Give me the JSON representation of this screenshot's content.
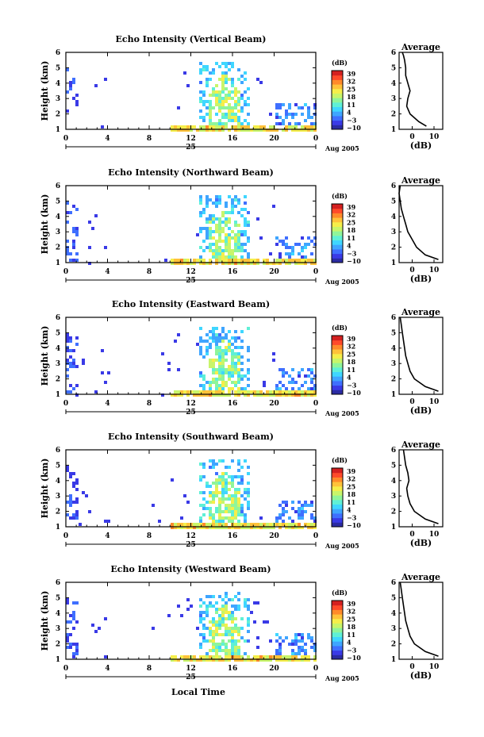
{
  "figure": {
    "x_axis_label": "Local Time",
    "date_label": "Aug 2005",
    "colorbar_unit": "(dB)",
    "colorbar_ticks": [
      "39",
      "32",
      "25",
      "18",
      "11",
      "4",
      "−3",
      "−10"
    ],
    "colormap": [
      "#2b2ba3",
      "#3a3ae6",
      "#3f6fff",
      "#3fa5ff",
      "#3fd6ff",
      "#5ff0d6",
      "#8ff59a",
      "#c8f56a",
      "#f5ee4a",
      "#ffc23a",
      "#ff8a2a",
      "#ff4a2a",
      "#d42020"
    ]
  },
  "chart_data": [
    {
      "type": "heatmap",
      "title": "Echo Intensity (Vertical Beam)",
      "ylabel": "Height (km)",
      "ylim": [
        1,
        6
      ],
      "yticks": [
        1,
        2,
        3,
        4,
        5,
        6
      ],
      "xticks": [
        "0",
        "4",
        "8",
        "12",
        "16",
        "20",
        "0"
      ],
      "xsublabel": "25",
      "clim": [
        -10,
        39
      ],
      "profile": {
        "title": "Average",
        "xlabel": "(dB)",
        "xticks": [
          "0",
          "10"
        ],
        "x": [
          6.5,
          3,
          -1,
          -2.5,
          -2,
          -1,
          -2,
          -3,
          -3,
          -3.5,
          -4,
          -4.5
        ],
        "y": [
          1.2,
          1.5,
          2,
          2.5,
          3,
          3.5,
          4,
          4.5,
          5,
          5.5,
          5.8,
          6
        ]
      }
    },
    {
      "type": "heatmap",
      "title": "Echo Intensity (Northward Beam)",
      "ylabel": "Height (km)",
      "ylim": [
        1,
        6
      ],
      "yticks": [
        1,
        2,
        3,
        4,
        5,
        6
      ],
      "xticks": [
        "0",
        "4",
        "8",
        "12",
        "16",
        "20",
        "0"
      ],
      "xsublabel": "25",
      "clim": [
        -10,
        39
      ],
      "profile": {
        "title": "Average",
        "xlabel": "(dB)",
        "xticks": [
          "0",
          "10"
        ],
        "x": [
          12,
          6,
          2,
          0,
          -2,
          -3,
          -4,
          -5,
          -5.5,
          -6,
          -5.5
        ],
        "y": [
          1.2,
          1.5,
          2,
          2.5,
          3,
          3.5,
          4,
          4.5,
          5,
          5.5,
          6
        ]
      }
    },
    {
      "type": "heatmap",
      "title": "Echo Intensity (Eastward Beam)",
      "ylabel": "Height (km)",
      "ylim": [
        1,
        6
      ],
      "yticks": [
        1,
        2,
        3,
        4,
        5,
        6
      ],
      "xticks": [
        "0",
        "4",
        "8",
        "12",
        "16",
        "20",
        "0"
      ],
      "xsublabel": "25",
      "clim": [
        -10,
        39
      ],
      "profile": {
        "title": "Average",
        "xlabel": "(dB)",
        "xticks": [
          "0",
          "10"
        ],
        "x": [
          12,
          6,
          1,
          -1,
          -2,
          -3,
          -3.5,
          -4,
          -4.5,
          -5,
          -5.5
        ],
        "y": [
          1.2,
          1.5,
          2,
          2.5,
          3,
          3.5,
          4,
          4.5,
          5,
          5.5,
          6
        ]
      }
    },
    {
      "type": "heatmap",
      "title": "Echo Intensity (Southward Beam)",
      "ylabel": "Height (km)",
      "ylim": [
        1,
        6
      ],
      "yticks": [
        1,
        2,
        3,
        4,
        5,
        6
      ],
      "xticks": [
        "0",
        "4",
        "8",
        "12",
        "16",
        "20",
        "0"
      ],
      "xsublabel": "25",
      "clim": [
        -10,
        39
      ],
      "profile": {
        "title": "Average",
        "xlabel": "(dB)",
        "xticks": [
          "0",
          "10"
        ],
        "x": [
          12,
          6,
          1,
          -1,
          -2,
          -2.5,
          -1.5,
          -2,
          -3,
          -3.5,
          -4
        ],
        "y": [
          1.2,
          1.5,
          2,
          2.5,
          3,
          3.5,
          4,
          4.5,
          5,
          5.5,
          6
        ]
      }
    },
    {
      "type": "heatmap",
      "title": "Echo Intensity (Westward Beam)",
      "ylabel": "Height (km)",
      "ylim": [
        1,
        6
      ],
      "yticks": [
        1,
        2,
        3,
        4,
        5,
        6
      ],
      "xticks": [
        "0",
        "4",
        "8",
        "12",
        "16",
        "20",
        "0"
      ],
      "xsublabel": "25",
      "clim": [
        -10,
        39
      ],
      "profile": {
        "title": "Average",
        "xlabel": "(dB)",
        "xticks": [
          "0",
          "10"
        ],
        "x": [
          12,
          6,
          1,
          -1,
          -2,
          -3,
          -3.5,
          -4,
          -4.5,
          -5,
          -5.5
        ],
        "y": [
          1.2,
          1.5,
          2,
          2.5,
          3,
          3.5,
          4,
          4.5,
          5,
          5.5,
          6
        ]
      }
    }
  ]
}
